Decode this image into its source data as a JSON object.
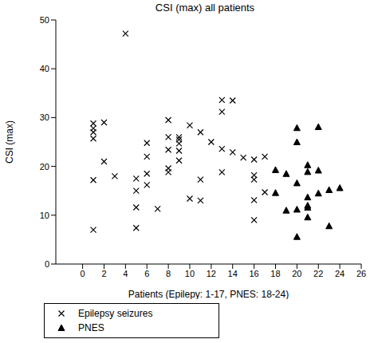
{
  "chart_data": {
    "type": "scatter",
    "title": "CSI (max) all patients",
    "x_label": "Patients (Epilepy: 1-17, PNES: 18-24)",
    "y_label": "CSI (max)",
    "xlim": [
      -2.5,
      26
    ],
    "xticks": [
      0,
      2,
      4,
      6,
      8,
      10,
      12,
      14,
      16,
      18,
      20,
      22,
      24,
      26
    ],
    "ylim": [
      0,
      50
    ],
    "yticks": [
      0,
      10,
      20,
      30,
      40,
      50
    ],
    "grid": false,
    "legend": "bottom",
    "series": [
      {
        "name": "Epilepsy seizures",
        "color": "#000000",
        "marker": "x",
        "x": [
          1,
          1,
          1,
          1,
          1,
          1,
          2,
          2,
          3,
          4,
          5,
          5,
          5,
          5,
          6,
          6,
          6,
          6,
          7,
          8,
          8,
          8,
          8,
          8,
          9,
          9,
          9,
          9,
          9,
          10,
          10,
          11,
          11,
          11,
          12,
          13,
          13,
          13,
          13,
          14,
          14,
          15,
          16,
          16,
          16,
          16,
          16,
          17,
          17
        ],
        "values": [
          28.8,
          27.8,
          27,
          25.7,
          17.2,
          7,
          29,
          21,
          18,
          47.2,
          17.5,
          15,
          11.6,
          7.4,
          24.8,
          22,
          18.5,
          16.2,
          11.3,
          29.5,
          26,
          23.4,
          19.6,
          18.8,
          26,
          25.5,
          24.7,
          23.2,
          21.2,
          28.4,
          13.4,
          27,
          17.3,
          13,
          25,
          33.6,
          31.2,
          23.6,
          18.8,
          33.5,
          22.9,
          21.8,
          21.4,
          18.2,
          17.3,
          13.1,
          9,
          22,
          14.7
        ]
      },
      {
        "name": "PNES",
        "color": "#000000",
        "marker": "triangle",
        "x": [
          18,
          18,
          19,
          19,
          20,
          20,
          20,
          20,
          20,
          21,
          21,
          21,
          21,
          21,
          21,
          22,
          22,
          22,
          23,
          23,
          24
        ],
        "values": [
          19.3,
          14.6,
          18.5,
          11,
          27.9,
          25,
          16.6,
          11.2,
          5.6,
          20.3,
          18.9,
          13.7,
          12,
          11.6,
          9.6,
          28.1,
          19.2,
          14.5,
          15.2,
          7.8,
          15.6
        ]
      }
    ]
  }
}
